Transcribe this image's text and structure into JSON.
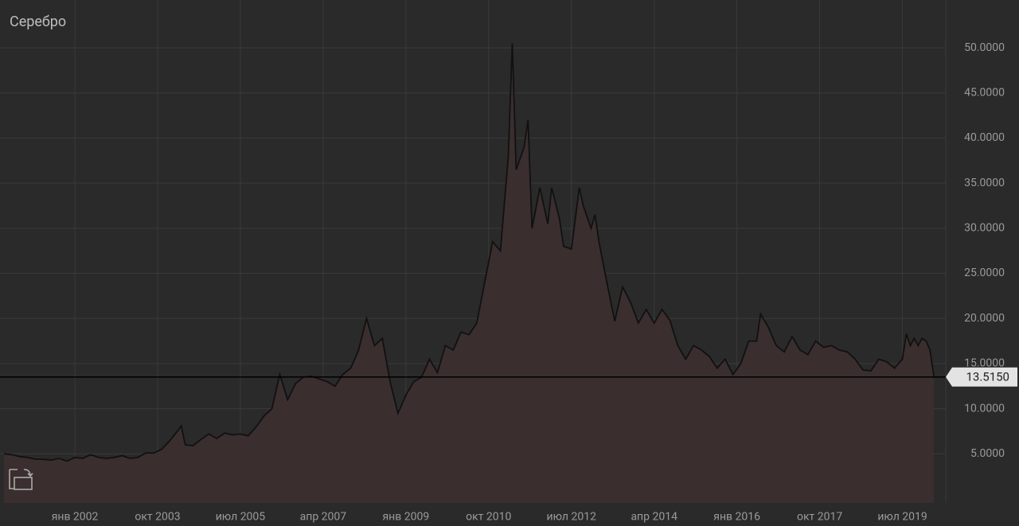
{
  "chart_data": {
    "type": "area",
    "title": "Серебро",
    "x": [
      "2000-07",
      "2000-09",
      "2000-11",
      "2001-01",
      "2001-03",
      "2001-05",
      "2001-07",
      "2001-09",
      "2001-11",
      "2002-01",
      "2002-03",
      "2002-05",
      "2002-07",
      "2002-09",
      "2002-11",
      "2003-01",
      "2003-03",
      "2003-05",
      "2003-07",
      "2003-09",
      "2003-11",
      "2004-01",
      "2004-03",
      "2004-04",
      "2004-05",
      "2004-07",
      "2004-09",
      "2004-11",
      "2005-01",
      "2005-03",
      "2005-05",
      "2005-07",
      "2005-09",
      "2005-11",
      "2006-01",
      "2006-03",
      "2006-05",
      "2006-07",
      "2006-09",
      "2006-11",
      "2007-01",
      "2007-03",
      "2007-05",
      "2007-07",
      "2007-09",
      "2007-11",
      "2008-01",
      "2008-03",
      "2008-05",
      "2008-07",
      "2008-09",
      "2008-11",
      "2009-01",
      "2009-03",
      "2009-05",
      "2009-07",
      "2009-09",
      "2009-11",
      "2010-01",
      "2010-03",
      "2010-05",
      "2010-07",
      "2010-09",
      "2010-11",
      "2011-01",
      "2011-03",
      "2011-04",
      "2011-05",
      "2011-07",
      "2011-08",
      "2011-09",
      "2011-11",
      "2012-01",
      "2012-02",
      "2012-04",
      "2012-05",
      "2012-07",
      "2012-09",
      "2012-10",
      "2012-12",
      "2013-01",
      "2013-02",
      "2013-04",
      "2013-06",
      "2013-08",
      "2013-10",
      "2013-12",
      "2014-02",
      "2014-04",
      "2014-06",
      "2014-08",
      "2014-10",
      "2014-12",
      "2015-02",
      "2015-04",
      "2015-06",
      "2015-08",
      "2015-10",
      "2015-12",
      "2016-02",
      "2016-04",
      "2016-06",
      "2016-07",
      "2016-09",
      "2016-11",
      "2017-01",
      "2017-03",
      "2017-05",
      "2017-07",
      "2017-09",
      "2017-11",
      "2018-01",
      "2018-03",
      "2018-05",
      "2018-07",
      "2018-09",
      "2018-11",
      "2019-01",
      "2019-03",
      "2019-05",
      "2019-07",
      "2019-08",
      "2019-09",
      "2019-10",
      "2019-11",
      "2019-12",
      "2020-01",
      "2020-02",
      "2020-03"
    ],
    "values": [
      5.0,
      4.9,
      4.7,
      4.6,
      4.4,
      4.4,
      4.3,
      4.5,
      4.2,
      4.6,
      4.5,
      4.9,
      4.6,
      4.5,
      4.6,
      4.8,
      4.5,
      4.6,
      5.1,
      5.1,
      5.5,
      6.4,
      7.5,
      8.1,
      6.0,
      5.9,
      6.6,
      7.2,
      6.7,
      7.3,
      7.1,
      7.2,
      7.0,
      8.0,
      9.2,
      10.0,
      13.8,
      11.0,
      12.8,
      13.5,
      13.6,
      13.3,
      13.0,
      12.5,
      13.8,
      14.5,
      16.5,
      20.0,
      17.0,
      17.8,
      13.0,
      9.5,
      11.5,
      13.0,
      13.5,
      15.5,
      14.0,
      17.0,
      16.5,
      18.5,
      18.2,
      19.5,
      24.0,
      28.5,
      27.5,
      38.0,
      50.5,
      36.5,
      39.0,
      42.0,
      30.0,
      34.5,
      30.5,
      34.5,
      31.0,
      28.0,
      27.7,
      34.5,
      32.5,
      30.0,
      31.5,
      28.5,
      24.0,
      19.7,
      23.5,
      21.8,
      19.5,
      21.0,
      19.5,
      21.0,
      19.8,
      17.0,
      15.5,
      17.0,
      16.5,
      15.8,
      14.5,
      15.5,
      13.8,
      15.0,
      17.5,
      17.5,
      20.5,
      19.0,
      17.0,
      16.3,
      18.0,
      16.5,
      16.0,
      17.5,
      16.8,
      17.0,
      16.5,
      16.3,
      15.5,
      14.3,
      14.2,
      15.5,
      15.2,
      14.5,
      15.5,
      18.3,
      17.0,
      17.8,
      17.0,
      17.8,
      17.5,
      16.5,
      13.515
    ],
    "color": "#111111",
    "fill": "#3a2e2e",
    "xlim": [
      "2000-06",
      "2020-06"
    ],
    "xticks": [
      {
        "value": "2002-01",
        "label": "янв 2002"
      },
      {
        "value": "2003-10",
        "label": "окт 2003"
      },
      {
        "value": "2005-07",
        "label": "июл 2005"
      },
      {
        "value": "2007-04",
        "label": "апр 2007"
      },
      {
        "value": "2009-01",
        "label": "янв 2009"
      },
      {
        "value": "2010-10",
        "label": "окт 2010"
      },
      {
        "value": "2012-07",
        "label": "июл 2012"
      },
      {
        "value": "2014-04",
        "label": "апр 2014"
      },
      {
        "value": "2016-01",
        "label": "янв 2016"
      },
      {
        "value": "2017-10",
        "label": "окт 2017"
      },
      {
        "value": "2019-07",
        "label": "июл 2019"
      }
    ],
    "ylim": [
      0,
      55.3
    ],
    "yticks": [
      {
        "value": 5,
        "label": "5.0000"
      },
      {
        "value": 10,
        "label": "10.0000"
      },
      {
        "value": 15,
        "label": "15.0000"
      },
      {
        "value": 20,
        "label": "20.0000"
      },
      {
        "value": 25,
        "label": "25.0000"
      },
      {
        "value": 30,
        "label": "30.0000"
      },
      {
        "value": 35,
        "label": "35.0000"
      },
      {
        "value": 40,
        "label": "40.0000"
      },
      {
        "value": 45,
        "label": "45.0000"
      },
      {
        "value": 50,
        "label": "50.0000"
      }
    ],
    "current": {
      "value": 13.515,
      "label": "13.5150"
    },
    "grid": true
  }
}
